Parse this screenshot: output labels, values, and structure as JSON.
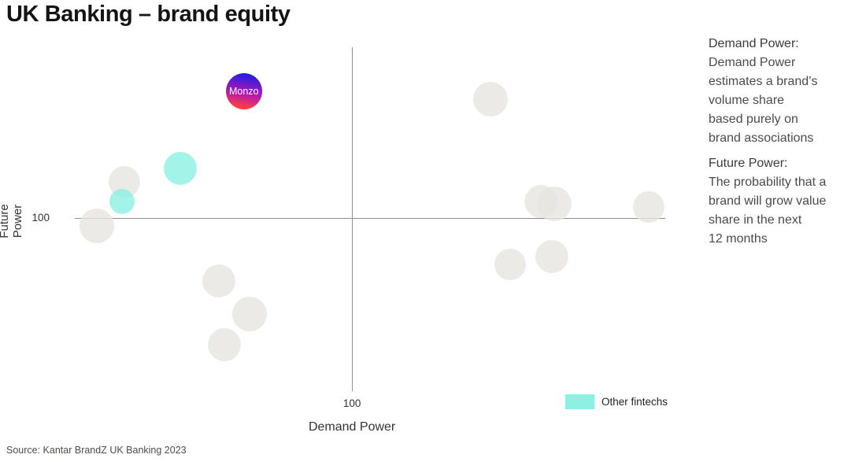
{
  "source": "Source: Kantar BrandZ UK Banking 2023",
  "legend": {
    "swatch_color": "#8cf1e3",
    "label": "Other fintechs"
  },
  "sidebar": {
    "sections": [
      {
        "heading": "Demand Power:",
        "lines": [
          "Demand Power",
          "estimates a brand’s",
          "volume share",
          "based purely on",
          "brand associations"
        ]
      },
      {
        "heading": "Future Power:",
        "lines": [
          "The probability that a",
          "brand will grow value",
          "share in the next",
          "12 months"
        ]
      }
    ]
  },
  "chart_data": {
    "type": "scatter",
    "title": "UK Banking – brand equity",
    "xlabel": "Demand Power",
    "ylabel": "Future Power",
    "xlim": [
      0,
      213
    ],
    "ylim": [
      37,
      162
    ],
    "grid": false,
    "reference_lines": {
      "x": 100,
      "y": 100
    },
    "axis_color": "#8f8f8f",
    "series": [
      {
        "name": "banks",
        "color": "#e7e5e0",
        "opacity": 0.8,
        "points": [
          {
            "x": 8,
            "y": 97,
            "r": 22
          },
          {
            "x": 18,
            "y": 113,
            "r": 20
          },
          {
            "x": 52,
            "y": 77,
            "r": 21
          },
          {
            "x": 63,
            "y": 65,
            "r": 22
          },
          {
            "x": 54,
            "y": 54,
            "r": 21
          },
          {
            "x": 150,
            "y": 143,
            "r": 22
          },
          {
            "x": 168,
            "y": 106,
            "r": 21
          },
          {
            "x": 173,
            "y": 105,
            "r": 22
          },
          {
            "x": 207,
            "y": 104,
            "r": 20
          },
          {
            "x": 157,
            "y": 83,
            "r": 20
          },
          {
            "x": 172,
            "y": 86,
            "r": 21
          }
        ]
      },
      {
        "name": "other-fintechs",
        "color": "#86efe0",
        "opacity": 0.75,
        "points": [
          {
            "x": 17,
            "y": 106,
            "r": 16
          },
          {
            "x": 38,
            "y": 118,
            "r": 21
          }
        ]
      },
      {
        "name": "monzo",
        "gradient": [
          "#2a1de0",
          "#b517b0",
          "#ff4436"
        ],
        "points": [
          {
            "x": 61,
            "y": 146,
            "r": 23,
            "label": "Monzo"
          }
        ]
      }
    ]
  }
}
